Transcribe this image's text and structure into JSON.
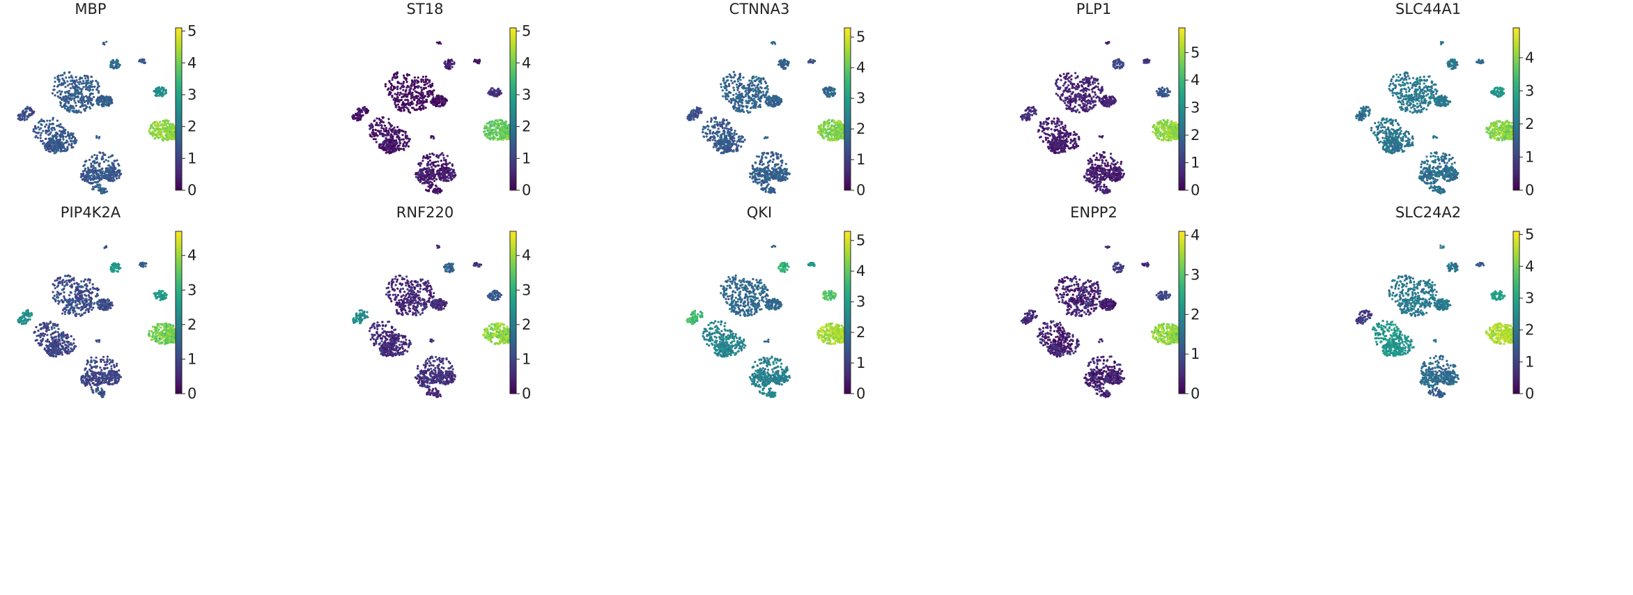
{
  "colormap": {
    "name": "viridis",
    "stops": [
      "#440154",
      "#482878",
      "#3e4989",
      "#31688e",
      "#26828e",
      "#1f9e89",
      "#35b779",
      "#6ece58",
      "#b5de2b",
      "#fde725"
    ]
  },
  "chart_data": [
    {
      "type": "scatter",
      "title": "MBP",
      "xlabel": "",
      "ylabel": "",
      "colorbar_ticks": [
        "0",
        "1",
        "2",
        "3",
        "4",
        "5"
      ],
      "colorbar_range": [
        0,
        5.1
      ],
      "cluster_levels": {
        "bigA": 1.5,
        "bigB": 1.4,
        "bigC": 1.4,
        "left": 1.2,
        "right": 2.6,
        "oligo": 4.2,
        "top1": 1.8,
        "top2": 1.5,
        "bottom": 1.6
      }
    },
    {
      "type": "scatter",
      "title": "ST18",
      "xlabel": "",
      "ylabel": "",
      "colorbar_ticks": [
        "0",
        "1",
        "2",
        "3",
        "4",
        "5"
      ],
      "colorbar_range": [
        0,
        5.1
      ],
      "cluster_levels": {
        "bigA": 0.2,
        "bigB": 0.3,
        "bigC": 0.4,
        "left": 0.3,
        "right": 0.8,
        "oligo": 3.9,
        "top1": 0.5,
        "top2": 0.3,
        "bottom": 0.3
      }
    },
    {
      "type": "scatter",
      "title": "CTNNA3",
      "xlabel": "",
      "ylabel": "",
      "colorbar_ticks": [
        "0",
        "1",
        "2",
        "3",
        "4",
        "5"
      ],
      "colorbar_range": [
        0,
        5.3
      ],
      "cluster_levels": {
        "bigA": 1.7,
        "bigB": 1.5,
        "bigC": 1.6,
        "left": 1.3,
        "right": 1.8,
        "oligo": 4.3,
        "top1": 1.6,
        "top2": 1.3,
        "bottom": 1.5
      }
    },
    {
      "type": "scatter",
      "title": "PLP1",
      "xlabel": "",
      "ylabel": "",
      "colorbar_ticks": [
        "0",
        "1",
        "2",
        "3",
        "4",
        "5"
      ],
      "colorbar_range": [
        0,
        5.9
      ],
      "cluster_levels": {
        "bigA": 0.6,
        "bigB": 0.5,
        "bigC": 0.5,
        "left": 0.8,
        "right": 1.6,
        "oligo": 4.9,
        "top1": 1.3,
        "top2": 0.9,
        "bottom": 0.6
      }
    },
    {
      "type": "scatter",
      "title": "SLC44A1",
      "xlabel": "",
      "ylabel": "",
      "colorbar_ticks": [
        "0",
        "1",
        "2",
        "3",
        "4"
      ],
      "colorbar_range": [
        0,
        4.9
      ],
      "cluster_levels": {
        "bigA": 2.0,
        "bigB": 1.9,
        "bigC": 1.8,
        "left": 1.8,
        "right": 2.6,
        "oligo": 4.0,
        "top1": 2.0,
        "top2": 1.7,
        "bottom": 1.9
      }
    },
    {
      "type": "scatter",
      "title": "PIP4K2A",
      "xlabel": "",
      "ylabel": "",
      "colorbar_ticks": [
        "0",
        "1",
        "2",
        "3",
        "4"
      ],
      "colorbar_range": [
        0,
        4.7
      ],
      "cluster_levels": {
        "bigA": 1.1,
        "bigB": 1.0,
        "bigC": 1.0,
        "left": 2.4,
        "right": 2.6,
        "oligo": 3.7,
        "top1": 2.5,
        "top2": 1.4,
        "bottom": 1.2
      }
    },
    {
      "type": "scatter",
      "title": "RNF220",
      "xlabel": "",
      "ylabel": "",
      "colorbar_ticks": [
        "0",
        "1",
        "2",
        "3",
        "4"
      ],
      "colorbar_range": [
        0,
        4.7
      ],
      "cluster_levels": {
        "bigA": 0.6,
        "bigB": 0.6,
        "bigC": 0.7,
        "left": 2.3,
        "right": 1.3,
        "oligo": 3.9,
        "top1": 1.5,
        "top2": 0.8,
        "bottom": 0.5
      }
    },
    {
      "type": "scatter",
      "title": "QKI",
      "xlabel": "",
      "ylabel": "",
      "colorbar_ticks": [
        "0",
        "1",
        "2",
        "3",
        "4",
        "5"
      ],
      "colorbar_range": [
        0,
        5.3
      ],
      "cluster_levels": {
        "bigA": 1.8,
        "bigB": 2.4,
        "bigC": 2.3,
        "left": 3.6,
        "right": 3.9,
        "oligo": 4.6,
        "top1": 3.5,
        "top2": 2.8,
        "bottom": 2.5
      }
    },
    {
      "type": "scatter",
      "title": "ENPP2",
      "xlabel": "",
      "ylabel": "",
      "colorbar_ticks": [
        "0",
        "1",
        "2",
        "3",
        "4"
      ],
      "colorbar_range": [
        0,
        4.1
      ],
      "cluster_levels": {
        "bigA": 0.4,
        "bigB": 0.4,
        "bigC": 0.4,
        "left": 0.5,
        "right": 0.9,
        "oligo": 3.4,
        "top1": 0.8,
        "top2": 0.6,
        "bottom": 0.4
      }
    },
    {
      "type": "scatter",
      "title": "SLC24A2",
      "xlabel": "",
      "ylabel": "",
      "colorbar_ticks": [
        "0",
        "1",
        "2",
        "3",
        "4",
        "5"
      ],
      "colorbar_range": [
        0,
        5.1
      ],
      "cluster_levels": {
        "bigA": 2.1,
        "bigB": 2.7,
        "bigC": 1.8,
        "left": 0.9,
        "right": 2.9,
        "oligo": 4.5,
        "top1": 2.0,
        "top2": 1.5,
        "bottom": 1.5
      }
    }
  ]
}
